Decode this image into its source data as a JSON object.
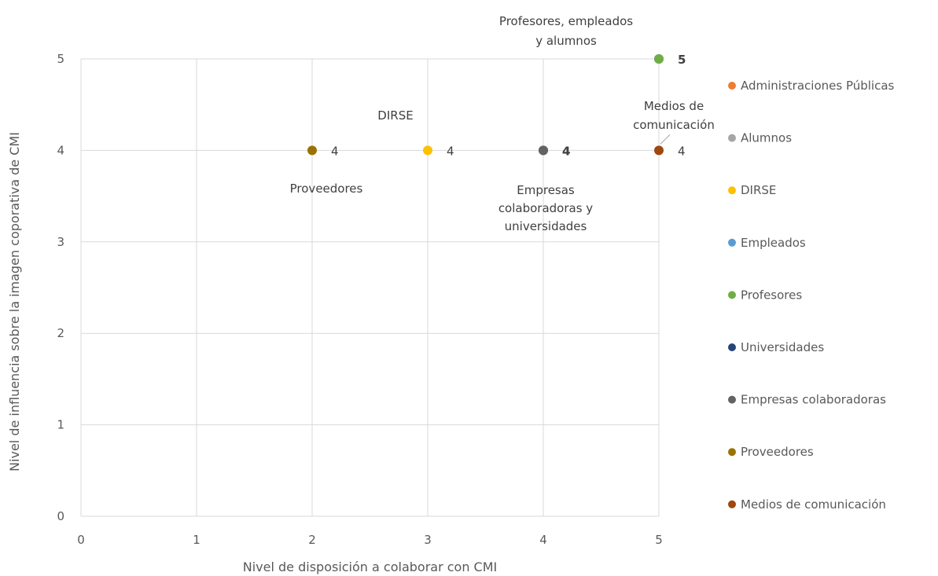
{
  "chart_data": {
    "type": "scatter",
    "title": "",
    "xlabel": "Nivel de disposición a colaborar con CMI",
    "ylabel": "Nivel de influencia sobre la imagen coporativa de CMI",
    "xlim": [
      0,
      5
    ],
    "ylim": [
      0,
      5
    ],
    "xticks": [
      "0",
      "1",
      "2",
      "3",
      "4",
      "5"
    ],
    "yticks": [
      "0",
      "1",
      "2",
      "3",
      "4",
      "5"
    ],
    "grid": true,
    "legend_position": "right",
    "series": [
      {
        "name": "Administraciones Públicas",
        "color": "#ED7D31",
        "points": []
      },
      {
        "name": "Alumnos",
        "color": "#A5A5A5",
        "points": [
          {
            "x": 5,
            "y": 5
          }
        ]
      },
      {
        "name": "DIRSE",
        "color": "#FFC000",
        "points": [
          {
            "x": 3,
            "y": 4,
            "label": "4"
          }
        ]
      },
      {
        "name": "Empleados",
        "color": "#5B9BD5",
        "points": [
          {
            "x": 5,
            "y": 5
          }
        ]
      },
      {
        "name": "Profesores",
        "color": "#70AD47",
        "points": [
          {
            "x": 5,
            "y": 5,
            "label": "5"
          }
        ]
      },
      {
        "name": "Universidades",
        "color": "#264478",
        "points": [
          {
            "x": 4,
            "y": 4,
            "label": "4"
          }
        ]
      },
      {
        "name": "Empresas colaboradoras",
        "color": "#636363",
        "points": [
          {
            "x": 4,
            "y": 4,
            "label": "4"
          }
        ]
      },
      {
        "name": "Proveedores",
        "color": "#997300",
        "points": [
          {
            "x": 2,
            "y": 4,
            "label": "4"
          }
        ]
      },
      {
        "name": "Medios de comunicación",
        "color": "#9E480E",
        "points": [
          {
            "x": 5,
            "y": 4,
            "label": "4"
          }
        ]
      }
    ],
    "annotations": [
      {
        "lines": [
          "Profesores, empleados",
          "y alumnos"
        ],
        "near": [
          5,
          5
        ]
      },
      {
        "lines": [
          "DIRSE"
        ],
        "near": [
          3,
          4
        ]
      },
      {
        "lines": [
          "Medios de",
          "comunicación"
        ],
        "near": [
          5,
          4
        ]
      },
      {
        "lines": [
          "Proveedores"
        ],
        "near": [
          2,
          4
        ]
      },
      {
        "lines": [
          "Empresas",
          "colaboradoras y",
          "universidades"
        ],
        "near": [
          4,
          4
        ]
      }
    ]
  }
}
